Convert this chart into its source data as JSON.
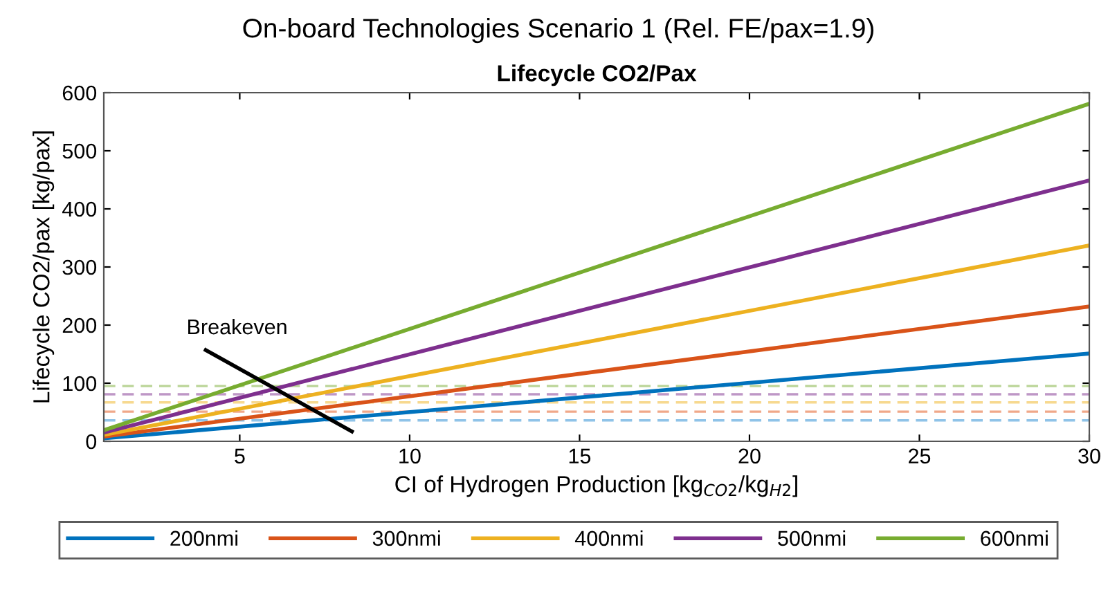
{
  "chart_data": {
    "type": "line",
    "title": "On-board Technologies Scenario 1 (Rel. FE/pax=1.9)",
    "subtitle": "Lifecycle CO2/Pax",
    "xlabel": "CI of Hydrogen Production [kg$_{CO2}$/kg$_{H2}$]",
    "ylabel": "Lifecycle CO2/pax [kg/pax]",
    "series": [
      {
        "name": "200nmi",
        "color": "#0072bd",
        "x": [
          1,
          30
        ],
        "values": [
          5,
          151
        ]
      },
      {
        "name": "300nmi",
        "color": "#d95319",
        "x": [
          1,
          30
        ],
        "values": [
          8,
          232
        ]
      },
      {
        "name": "400nmi",
        "color": "#edb120",
        "x": [
          1,
          30
        ],
        "values": [
          11,
          337
        ]
      },
      {
        "name": "500nmi",
        "color": "#7e2f8e",
        "x": [
          1,
          30
        ],
        "values": [
          15,
          449
        ]
      },
      {
        "name": "600nmi",
        "color": "#77ac30",
        "x": [
          1,
          30
        ],
        "values": [
          19,
          581
        ]
      },
      {
        "color": "#000000",
        "x": [
          4,
          8.3
        ],
        "values": [
          157,
          17
        ]
      }
    ],
    "ref_lines": [
      {
        "axis": "y",
        "value": 36,
        "color": "#8fc3e8",
        "line_style": "dashed"
      },
      {
        "axis": "y",
        "value": 51,
        "color": "#f0a889",
        "line_style": "dashed"
      },
      {
        "axis": "y",
        "value": 67,
        "color": "#f7d98f",
        "line_style": "dashed"
      },
      {
        "axis": "y",
        "value": 81,
        "color": "#be97c6",
        "line_style": "dashed"
      },
      {
        "axis": "y",
        "value": 95,
        "color": "#bbd598",
        "line_style": "dashed"
      }
    ],
    "annotations": [
      "Breakeven"
    ],
    "xlim": [
      1,
      30
    ],
    "ylim": [
      0,
      600
    ],
    "xticks": [
      5,
      10,
      15,
      20,
      25,
      30
    ],
    "yticks": [
      0,
      100,
      200,
      300,
      400,
      500,
      600
    ],
    "grid": false,
    "legend": "bottom",
    "marker": "none",
    "line_style": "solid"
  }
}
